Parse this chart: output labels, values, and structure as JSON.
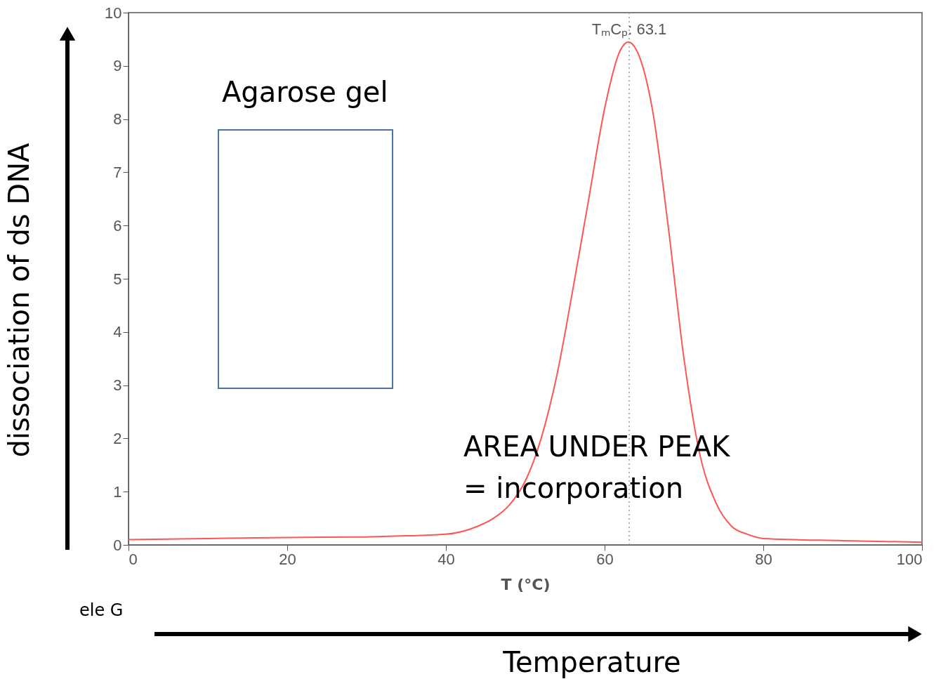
{
  "chart_data": {
    "type": "line",
    "xlabel": "T (°C)",
    "ylabel": "dissociation  of ds DNA",
    "x": [
      0,
      10,
      20,
      30,
      35,
      40,
      44,
      46,
      48,
      50,
      52,
      54,
      56,
      58,
      60,
      62,
      63,
      64,
      66,
      68,
      70,
      72,
      74,
      76,
      78,
      80,
      90,
      100
    ],
    "series": [
      {
        "color": "#ff5555",
        "values": [
          0.1,
          0.12,
          0.14,
          0.15,
          0.17,
          0.2,
          0.35,
          0.5,
          0.75,
          1.2,
          2.0,
          3.2,
          4.8,
          6.5,
          8.2,
          9.3,
          9.45,
          9.3,
          8.2,
          6.0,
          3.5,
          1.7,
          0.8,
          0.35,
          0.2,
          0.12,
          0.08,
          0.05
        ]
      }
    ],
    "xlim": [
      0,
      100
    ],
    "ylim": [
      0,
      10
    ],
    "xticks": [
      0,
      20,
      40,
      60,
      80,
      100
    ],
    "yticks": [
      0,
      1,
      2,
      3,
      4,
      5,
      6,
      7,
      8,
      9,
      10
    ],
    "ref_lines": [
      {
        "axis": "x",
        "value": 63.1,
        "label": "TₘCₚ: 63.1",
        "color": "#999999",
        "line_style": "dotted"
      }
    ],
    "annotations": [
      "Agarose gel",
      "AREA UNDER PEAK",
      "= incorporation",
      "ele G",
      "Temperature"
    ]
  }
}
